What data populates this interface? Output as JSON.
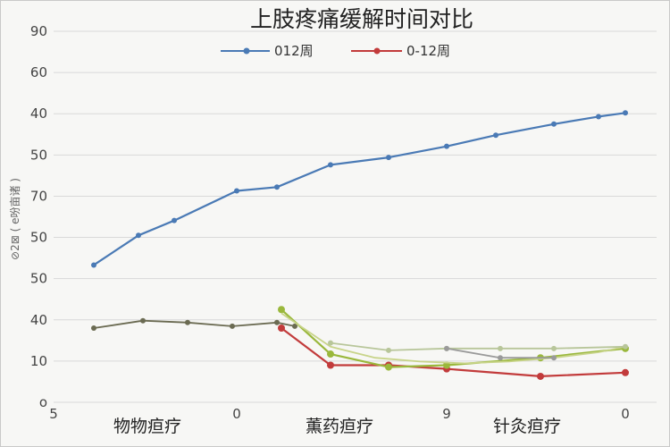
{
  "chart_data": {
    "type": "line",
    "title": "上肢疼痛缓解时间对比",
    "ylabel": "⊘2⊠ ( e吩亩诸 )",
    "ylim": [
      0,
      100
    ],
    "grid": true,
    "legend": {
      "placement": "top-center",
      "entries": [
        "012周",
        "0-12周"
      ]
    },
    "y_tick_labels": [
      "90",
      "60",
      "40",
      "50",
      "70",
      "50",
      "50",
      "40",
      "10",
      "o"
    ],
    "x_tick_labels": [
      "5",
      "0",
      "9",
      "0"
    ],
    "categories": [
      "物物疸疗",
      "薫药疸疗",
      "针灸疸疗"
    ],
    "colors": {
      "series_blue": "#4a7ab5",
      "series_red": "#c23b3b",
      "gray": "#6b6b52",
      "green_dark": "#9ab83c",
      "green_light": "#c8d48a",
      "green_pale": "#b8c69a",
      "gray_light": "#9a9a9a"
    },
    "series": [
      {
        "name": "012周",
        "color": "#4a7ab5",
        "marker": true,
        "x": [
          0.9,
          1.9,
          2.7,
          4.1,
          5.0,
          6.2,
          7.5,
          8.8,
          9.9,
          11.2,
          12.2,
          12.8
        ],
        "y": [
          37,
          45,
          49,
          57,
          58,
          64,
          66,
          69,
          72,
          75,
          77,
          78
        ]
      },
      {
        "name": "0-12周",
        "color": "#c23b3b",
        "marker": true,
        "x": [
          5.1,
          6.2,
          7.5,
          8.8,
          10.9,
          12.8
        ],
        "y": [
          20,
          10,
          10,
          9,
          7,
          8
        ]
      },
      {
        "name": "",
        "color": "#6b6b52",
        "marker": true,
        "x": [
          0.9,
          2.0,
          3.0,
          4.0,
          5.0,
          5.4
        ],
        "y": [
          20,
          22,
          21.5,
          20.5,
          21.5,
          20.5
        ]
      },
      {
        "name": "",
        "color": "#9ab83c",
        "marker": true,
        "x": [
          5.1,
          6.2,
          7.5,
          8.8,
          10.9,
          12.8
        ],
        "y": [
          25,
          13,
          9.5,
          10,
          12,
          14.5
        ]
      },
      {
        "name": "",
        "color": "#c8d48a",
        "marker": false,
        "x": [
          5.1,
          6.2,
          7.2,
          8.2,
          9.2,
          10.2,
          11.2,
          12.2,
          12.8
        ],
        "y": [
          24,
          15,
          12,
          11,
          10.5,
          11,
          12,
          13.5,
          15
        ]
      },
      {
        "name": "",
        "color": "#b8c69a",
        "marker": true,
        "x": [
          6.2,
          7.5,
          8.8,
          10.0,
          11.2,
          12.8
        ],
        "y": [
          16,
          14,
          14.5,
          14.5,
          14.5,
          15
        ]
      },
      {
        "name": "",
        "color": "#9a9a9a",
        "marker": true,
        "x": [
          8.8,
          10.0,
          11.2
        ],
        "y": [
          14.5,
          12,
          12
        ]
      }
    ]
  }
}
